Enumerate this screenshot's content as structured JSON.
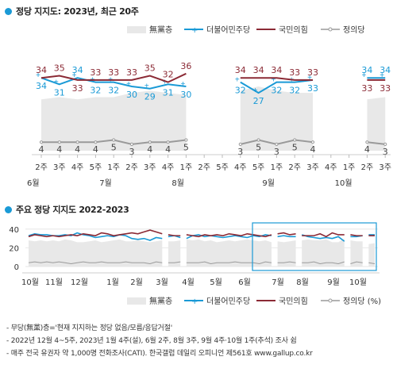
{
  "header": {
    "title1": "정당 지지도: 2023년, 최근 20주",
    "title2": "주요 정당 지지도 2022-2023"
  },
  "legend": [
    {
      "label": "無黨층",
      "type": "area",
      "color": "#e8e8e8"
    },
    {
      "label": "더불어민주당",
      "type": "line",
      "color": "#1a9ad6"
    },
    {
      "label": "국민의힘",
      "type": "line",
      "color": "#8b2a35"
    },
    {
      "label": "정의당",
      "type": "line",
      "color": "#9a9a9a"
    }
  ],
  "legend2_suffix": "(%)",
  "chart_data": [
    {
      "type": "line",
      "title": "정당 지지도: 2023년, 최근 20주",
      "categories": [
        "2주",
        "3주",
        "4주",
        "5주",
        "1주",
        "2주",
        "3주",
        "4주",
        "1주",
        "2주",
        "5주",
        "4주",
        "5주",
        "1주",
        "2주",
        "3주",
        "4주",
        "1주",
        "2주",
        "3주"
      ],
      "month_labels": [
        {
          "label": "6월",
          "index": 0
        },
        {
          "label": "7월",
          "index": 4
        },
        {
          "label": "8월",
          "index": 8
        },
        {
          "label": "9월",
          "index": 13
        },
        {
          "label": "10월",
          "index": 17
        }
      ],
      "series": [
        {
          "name": "더불어민주당",
          "color": "#1a9ad6",
          "values": [
            34,
            31,
            34,
            32,
            32,
            30,
            29,
            31,
            30,
            null,
            null,
            32,
            27,
            32,
            32,
            33,
            null,
            null,
            34,
            34
          ]
        },
        {
          "name": "국민의힘",
          "color": "#8b2a35",
          "values": [
            34,
            35,
            33,
            33,
            33,
            33,
            35,
            32,
            36,
            null,
            null,
            34,
            34,
            34,
            33,
            33,
            null,
            null,
            33,
            33
          ]
        },
        {
          "name": "정의당",
          "color": "#9a9a9a",
          "values": [
            4,
            4,
            4,
            4,
            5,
            3,
            4,
            4,
            5,
            null,
            null,
            3,
            5,
            3,
            5,
            4,
            null,
            null,
            4,
            3
          ]
        }
      ],
      "segments": [
        [
          0,
          8
        ],
        [
          11,
          15
        ],
        [
          18,
          19
        ]
      ],
      "muhdang_area": {
        "name": "無黨층",
        "color": "#e8e8e8",
        "values": [
          24,
          25,
          24,
          25,
          25,
          27,
          28,
          27,
          26,
          null,
          null,
          28,
          30,
          28,
          27,
          27,
          null,
          null,
          24,
          25
        ]
      },
      "ylim": [
        0,
        50
      ]
    },
    {
      "type": "line",
      "title": "주요 정당 지지도 2022-2023",
      "x_labels": [
        "10월",
        "11월",
        "12월",
        "1월",
        "2월",
        "3월",
        "4월",
        "5월",
        "6월",
        "7월",
        "8월",
        "9월",
        "10월"
      ],
      "series": [
        {
          "name": "더불어민주당",
          "color": "#1a9ad6",
          "values": [
            33,
            35,
            34,
            34,
            33,
            33,
            34,
            33,
            36,
            34,
            33,
            31,
            32,
            33,
            32,
            34,
            33,
            30,
            29,
            30,
            28,
            31,
            30,
            32,
            33,
            31,
            30,
            33,
            34,
            32,
            33,
            32,
            31,
            32,
            33,
            32,
            31,
            33,
            32,
            34,
            33,
            32,
            33,
            32,
            32,
            34,
            32,
            31,
            30,
            31,
            30,
            32,
            27,
            32,
            32,
            33,
            34,
            34
          ]
        },
        {
          "name": "국민의힘",
          "color": "#8b2a35",
          "values": [
            32,
            34,
            33,
            32,
            33,
            32,
            33,
            34,
            33,
            35,
            34,
            33,
            36,
            35,
            33,
            34,
            35,
            36,
            35,
            37,
            39,
            37,
            35,
            34,
            33,
            33,
            34,
            33,
            32,
            34,
            33,
            34,
            33,
            35,
            34,
            33,
            35,
            34,
            33,
            32,
            34,
            35,
            36,
            34,
            35,
            33,
            33,
            33,
            35,
            32,
            36,
            34,
            34,
            34,
            33,
            33,
            33,
            33
          ]
        },
        {
          "name": "정의당",
          "color": "#9a9a9a",
          "values": [
            4,
            5,
            4,
            5,
            4,
            5,
            4,
            3,
            4,
            5,
            4,
            4,
            5,
            4,
            4,
            4,
            5,
            4,
            4,
            4,
            3,
            5,
            4,
            4,
            4,
            5,
            4,
            4,
            4,
            5,
            3,
            4,
            4,
            4,
            5,
            4,
            4,
            4,
            3,
            5,
            4,
            4,
            4,
            5,
            4,
            4,
            4,
            5,
            3,
            4,
            4,
            3,
            5,
            3,
            5,
            4,
            4,
            3
          ]
        }
      ],
      "segments": [
        [
          0,
          22
        ],
        [
          23,
          25
        ],
        [
          26,
          40
        ],
        [
          41,
          44
        ],
        [
          45,
          52
        ],
        [
          53,
          55
        ],
        [
          56,
          57
        ]
      ],
      "muhdang_area": {
        "name": "無黨층",
        "color": "#e8e8e8",
        "values": [
          28,
          27,
          28,
          27,
          28,
          27,
          29,
          28,
          26,
          26,
          27,
          28,
          26,
          27,
          28,
          29,
          27,
          27,
          28,
          27,
          26,
          27,
          28,
          27,
          27,
          28,
          29,
          28,
          29,
          27,
          28,
          26,
          27,
          28,
          27,
          28,
          29,
          28,
          27,
          28,
          26,
          27,
          26,
          27,
          28,
          28,
          29,
          28,
          28,
          29,
          26,
          26,
          30,
          28,
          27,
          27,
          24,
          25
        ]
      },
      "ylim": [
        0,
        45
      ],
      "yticks": [
        0,
        20,
        40
      ]
    }
  ],
  "notes": [
    "- 무당(無黨)층='현재 지지하는 정당 없음/모름/응답거절'",
    "- 2022년 12월 4~5주, 2023년 1월 4주(설), 6월 2주, 8월 3주, 9월 4주·10월 1주(추석) 조사 쉼",
    "- 매주 전국 유권자 약 1,000명 전화조사(CATI). 한국갤럽 데일리 오피니언 제561호 www.gallup.co.kr"
  ]
}
